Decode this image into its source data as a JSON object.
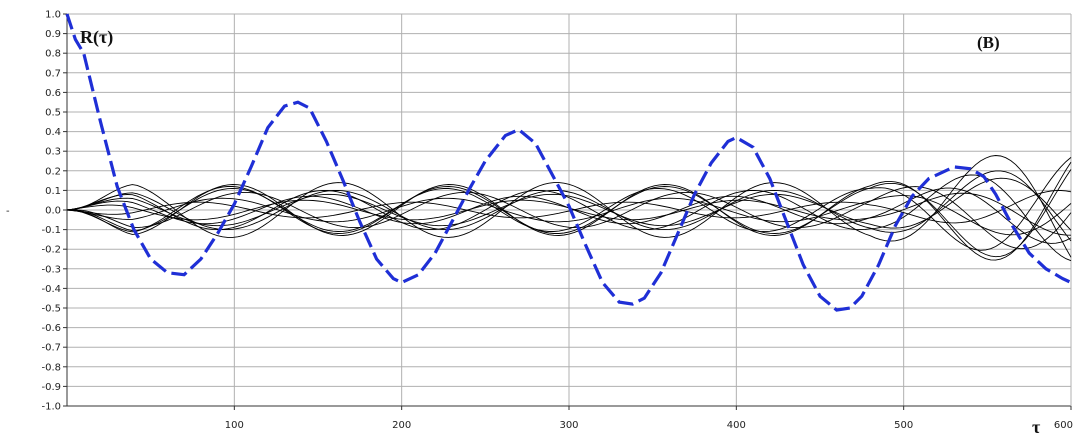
{
  "chart_data": {
    "type": "line",
    "title": "",
    "xlabel": "τ",
    "ylabel": "-",
    "xlim": [
      0,
      600
    ],
    "ylim": [
      -1.0,
      1.0
    ],
    "x_ticks": [
      100,
      200,
      300,
      400,
      500,
      600
    ],
    "y_ticks": [
      1.0,
      0.9,
      0.8,
      0.7,
      0.6,
      0.5,
      0.4,
      0.3,
      0.2,
      0.1,
      0.0,
      -0.1,
      -0.2,
      -0.3,
      -0.4,
      -0.5,
      -0.6,
      -0.7,
      -0.8,
      -0.9,
      -1.0
    ],
    "y_tick_labels": [
      "1.0",
      "0.9",
      "0.8",
      "0.7",
      "0.6",
      "0.5",
      "0.4",
      "0.3",
      "0.2",
      "0.1",
      "0.0",
      "-0.1",
      "-0.2",
      "-0.3",
      "-0.4",
      "-0.5",
      "-0.6",
      "-0.7",
      "-0.8",
      "-0.9",
      "-1.0"
    ],
    "grid": true,
    "annotations": {
      "curve_label": "R(τ)",
      "panel_label": "(B)"
    },
    "colors": {
      "highlight_series": "#1f2fd6",
      "background_series": "#000000",
      "grid": "#b0b0b0"
    },
    "series": [
      {
        "style": "dashed",
        "color": "#1f2fd6",
        "points": [
          [
            0,
            1.0
          ],
          [
            5,
            0.87
          ],
          [
            10,
            0.8
          ],
          [
            20,
            0.45
          ],
          [
            30,
            0.12
          ],
          [
            40,
            -0.1
          ],
          [
            50,
            -0.25
          ],
          [
            60,
            -0.32
          ],
          [
            70,
            -0.33
          ],
          [
            80,
            -0.25
          ],
          [
            90,
            -0.12
          ],
          [
            100,
            0.03
          ],
          [
            110,
            0.22
          ],
          [
            120,
            0.42
          ],
          [
            130,
            0.53
          ],
          [
            138,
            0.55
          ],
          [
            145,
            0.52
          ],
          [
            155,
            0.35
          ],
          [
            165,
            0.15
          ],
          [
            175,
            -0.06
          ],
          [
            185,
            -0.25
          ],
          [
            195,
            -0.35
          ],
          [
            200,
            -0.37
          ],
          [
            210,
            -0.33
          ],
          [
            220,
            -0.22
          ],
          [
            230,
            -0.06
          ],
          [
            240,
            0.1
          ],
          [
            250,
            0.25
          ],
          [
            262,
            0.38
          ],
          [
            270,
            0.41
          ],
          [
            280,
            0.34
          ],
          [
            290,
            0.18
          ],
          [
            300,
            0.02
          ],
          [
            310,
            -0.18
          ],
          [
            320,
            -0.37
          ],
          [
            330,
            -0.47
          ],
          [
            338,
            -0.48
          ],
          [
            345,
            -0.45
          ],
          [
            355,
            -0.32
          ],
          [
            365,
            -0.12
          ],
          [
            375,
            0.08
          ],
          [
            385,
            0.24
          ],
          [
            395,
            0.35
          ],
          [
            400,
            0.37
          ],
          [
            410,
            0.32
          ],
          [
            420,
            0.16
          ],
          [
            430,
            -0.06
          ],
          [
            440,
            -0.28
          ],
          [
            450,
            -0.44
          ],
          [
            460,
            -0.51
          ],
          [
            468,
            -0.5
          ],
          [
            475,
            -0.44
          ],
          [
            485,
            -0.28
          ],
          [
            495,
            -0.08
          ],
          [
            505,
            0.07
          ],
          [
            515,
            0.16
          ],
          [
            530,
            0.22
          ],
          [
            540,
            0.21
          ],
          [
            548,
            0.17
          ],
          [
            555,
            0.08
          ],
          [
            565,
            -0.08
          ],
          [
            575,
            -0.22
          ],
          [
            585,
            -0.3
          ],
          [
            595,
            -0.35
          ],
          [
            600,
            -0.37
          ]
        ]
      },
      {
        "style": "solid",
        "color": "#000000",
        "amplitude": 0.14,
        "period": 130,
        "phase": 0.0
      },
      {
        "style": "solid",
        "color": "#000000",
        "amplitude": 0.12,
        "period": 130,
        "phase": 3.1416
      },
      {
        "style": "solid",
        "color": "#000000",
        "amplitude": 0.1,
        "period": 128,
        "phase": 0.3
      },
      {
        "style": "solid",
        "color": "#000000",
        "amplitude": 0.09,
        "period": 132,
        "phase": 2.8
      },
      {
        "style": "solid",
        "color": "#000000",
        "amplitude": 0.07,
        "period": 126,
        "phase": 0.6
      },
      {
        "style": "solid",
        "color": "#000000",
        "amplitude": 0.06,
        "period": 134,
        "phase": 3.5
      },
      {
        "style": "solid",
        "color": "#000000",
        "amplitude": 0.05,
        "period": 130,
        "phase": 1.0
      },
      {
        "style": "solid",
        "color": "#000000",
        "amplitude": 0.04,
        "period": 128,
        "phase": 4.0
      },
      {
        "style": "solid",
        "color": "#000000",
        "amplitude": 0.1,
        "period": 131,
        "phase": 0.15
      },
      {
        "style": "solid",
        "color": "#000000",
        "amplitude": 0.13,
        "period": 129,
        "phase": 3.0
      },
      {
        "style": "solid",
        "color": "#000000",
        "amplitude": 0.08,
        "period": 133,
        "phase": 0.45
      },
      {
        "style": "solid",
        "color": "#000000",
        "amplitude": 0.11,
        "period": 127,
        "phase": 2.95
      }
    ]
  }
}
